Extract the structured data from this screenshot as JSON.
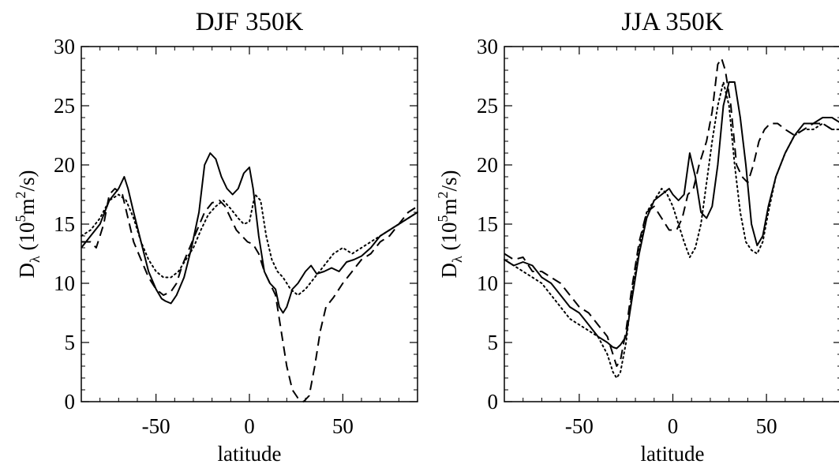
{
  "chart_data": [
    {
      "type": "line",
      "title": "DJF 350K",
      "xlabel": "latitude",
      "ylabel": {
        "main": "D",
        "sub": "λ",
        "units_pre": " (10",
        "units_sup": "5",
        "units_mid": "m",
        "units_sup2": "2",
        "units_post": "/s)"
      },
      "xlim": [
        -90,
        90
      ],
      "ylim": [
        0,
        30
      ],
      "xticks": [
        -50,
        0,
        50
      ],
      "yticks": [
        0,
        5,
        10,
        15,
        20,
        25,
        30
      ],
      "grid": false,
      "legend": "none",
      "series": [
        {
          "style": "solid",
          "x": [
            -90,
            -85,
            -80,
            -75,
            -70,
            -67,
            -65,
            -62,
            -58,
            -54,
            -50,
            -47,
            -45,
            -42,
            -39,
            -35,
            -31,
            -27,
            -24,
            -21,
            -18,
            -15,
            -12,
            -9,
            -6,
            -3,
            0,
            2,
            5,
            8,
            11,
            14,
            16,
            18,
            20,
            23,
            26,
            30,
            33,
            36,
            40,
            44,
            48,
            52,
            56,
            60,
            65,
            70,
            75,
            80,
            85,
            90
          ],
          "y": [
            13,
            14,
            15,
            17,
            18,
            19,
            18,
            16,
            13.5,
            11,
            9.5,
            8.7,
            8.5,
            8.3,
            9,
            10.5,
            13,
            16,
            20,
            21,
            20.5,
            19,
            18,
            17.5,
            18,
            19.3,
            19.8,
            18,
            14,
            11,
            10,
            9.5,
            8,
            7.5,
            8,
            9.5,
            10,
            11,
            11.5,
            10.8,
            11,
            11.3,
            11,
            11.8,
            12,
            12.3,
            13,
            14,
            14.5,
            15,
            15.5,
            16
          ]
        },
        {
          "style": "dashed",
          "x": [
            -90,
            -85,
            -82,
            -78,
            -75,
            -72,
            -68,
            -65,
            -62,
            -58,
            -54,
            -50,
            -46,
            -42,
            -39,
            -36,
            -32,
            -28,
            -24,
            -20,
            -16,
            -13,
            -10,
            -7,
            -4,
            -1,
            2,
            5,
            8,
            11,
            14,
            17,
            20,
            23,
            26,
            29,
            32,
            35,
            38,
            41,
            45,
            50,
            55,
            60,
            65,
            70,
            75,
            80,
            85,
            90
          ],
          "y": [
            13.5,
            13.5,
            13,
            15,
            17.5,
            18,
            17.5,
            15.5,
            13.5,
            12,
            10.5,
            9.5,
            9,
            9.3,
            10,
            11.5,
            13,
            14.5,
            16,
            16.8,
            17,
            16.5,
            15.5,
            14.5,
            14,
            13.5,
            13.3,
            12.5,
            11,
            10,
            9,
            6,
            3,
            1,
            0.3,
            0,
            0.5,
            3,
            6,
            8,
            8.8,
            10,
            11,
            12,
            12.5,
            13.5,
            14,
            15,
            16,
            16.5
          ]
        },
        {
          "style": "dotted",
          "x": [
            -90,
            -85,
            -80,
            -75,
            -70,
            -66,
            -62,
            -58,
            -54,
            -50,
            -46,
            -42,
            -38,
            -34,
            -30,
            -26,
            -22,
            -18,
            -14,
            -10,
            -6,
            -3,
            0,
            3,
            6,
            9,
            12,
            15,
            18,
            22,
            26,
            30,
            35,
            40,
            45,
            50,
            55,
            60,
            65,
            70,
            75,
            80,
            85,
            90
          ],
          "y": [
            14,
            14.5,
            15.5,
            17,
            17.5,
            17,
            15.5,
            13.5,
            12,
            11,
            10.5,
            10.5,
            11,
            12,
            13,
            14.5,
            15.8,
            16.5,
            17,
            16.3,
            15.5,
            15,
            15.2,
            17.5,
            17,
            14,
            12,
            11,
            10.5,
            9.5,
            9,
            9.5,
            10.5,
            11.5,
            12.5,
            13,
            12.5,
            13,
            13.5,
            14,
            14.5,
            15,
            15.5,
            16
          ]
        }
      ]
    },
    {
      "type": "line",
      "title": "JJA 350K",
      "xlabel": "latitude",
      "ylabel": {
        "main": "D",
        "sub": "λ",
        "units_pre": " (10",
        "units_sup": "5",
        "units_mid": "m",
        "units_sup2": "2",
        "units_post": "/s)"
      },
      "xlim": [
        -90,
        90
      ],
      "ylim": [
        0,
        30
      ],
      "xticks": [
        -50,
        0,
        50
      ],
      "yticks": [
        0,
        5,
        10,
        15,
        20,
        25,
        30
      ],
      "grid": false,
      "legend": "none",
      "series": [
        {
          "style": "solid",
          "x": [
            -90,
            -85,
            -80,
            -75,
            -70,
            -65,
            -60,
            -55,
            -50,
            -45,
            -40,
            -35,
            -32,
            -30,
            -28,
            -25,
            -22,
            -18,
            -14,
            -10,
            -6,
            -2,
            0,
            3,
            6,
            9,
            12,
            15,
            18,
            21,
            24,
            27,
            30,
            33,
            36,
            39,
            42,
            45,
            48,
            51,
            55,
            60,
            65,
            70,
            75,
            80,
            85,
            90
          ],
          "y": [
            12,
            11.5,
            11.8,
            11.5,
            10.5,
            10,
            9,
            8,
            7.5,
            6.5,
            5.5,
            5,
            4.6,
            4.5,
            4.8,
            5.5,
            8.5,
            12.5,
            15.5,
            17,
            17.5,
            18,
            17.5,
            17,
            17.5,
            21,
            19,
            16,
            15.5,
            16.5,
            20,
            25,
            27,
            27,
            24,
            20,
            15,
            13.2,
            14,
            16.5,
            19,
            21,
            22.5,
            23.5,
            23.5,
            24,
            24,
            23.5
          ]
        },
        {
          "style": "dashed",
          "x": [
            -90,
            -85,
            -80,
            -75,
            -70,
            -65,
            -60,
            -55,
            -50,
            -45,
            -40,
            -35,
            -32,
            -30,
            -28,
            -25,
            -22,
            -18,
            -14,
            -10,
            -6,
            -2,
            2,
            5,
            8,
            11,
            14,
            18,
            21,
            24,
            26,
            28,
            31,
            34,
            37,
            40,
            43,
            46,
            49,
            52,
            56,
            60,
            65,
            70,
            75,
            80,
            85,
            90
          ],
          "y": [
            12.5,
            12,
            12.2,
            11,
            11,
            10.5,
            10,
            9,
            8,
            7.5,
            6.5,
            5.5,
            4,
            3,
            3.5,
            6,
            9.5,
            13.5,
            16,
            16.5,
            15.5,
            14.5,
            14.5,
            15.5,
            17.5,
            18,
            20,
            22,
            24.5,
            28.5,
            29,
            28,
            25,
            20,
            19,
            18.5,
            20,
            22,
            23,
            23.5,
            23.5,
            23,
            22.5,
            23,
            23.5,
            23.5,
            23,
            23
          ]
        },
        {
          "style": "dotted",
          "x": [
            -90,
            -85,
            -80,
            -75,
            -70,
            -65,
            -60,
            -55,
            -50,
            -45,
            -40,
            -35,
            -32,
            -30,
            -28,
            -25,
            -22,
            -18,
            -14,
            -10,
            -6,
            -3,
            0,
            3,
            6,
            9,
            12,
            15,
            18,
            21,
            24,
            27,
            30,
            33,
            36,
            39,
            42,
            45,
            48,
            51,
            55,
            60,
            65,
            70,
            75,
            80,
            85,
            90
          ],
          "y": [
            12,
            11.5,
            11,
            10.5,
            10,
            9,
            8,
            7,
            6.5,
            6,
            5.5,
            4,
            2.5,
            2,
            2.5,
            5,
            9,
            13,
            16,
            17,
            18,
            17.5,
            16.5,
            15,
            13.5,
            12.2,
            13,
            15,
            18.5,
            22,
            25,
            27,
            25,
            20,
            16,
            13.5,
            12.8,
            12.5,
            13.5,
            16,
            19,
            21,
            22.5,
            23,
            23,
            23.5,
            23,
            23
          ]
        }
      ]
    }
  ]
}
